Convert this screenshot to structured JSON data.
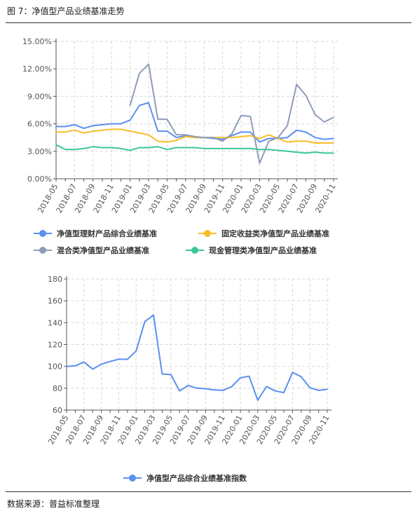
{
  "figure": {
    "title": "图 7：净值型产品业绩基准走势",
    "source": "数据来源：普益标准整理"
  },
  "colors": {
    "blue": "#5b8ff0",
    "yellow": "#f7bd2a",
    "gray": "#8e9cba",
    "green": "#3cc796",
    "grid": "#d9d9d9",
    "axis": "#555555"
  },
  "chart_data": [
    {
      "type": "line",
      "title": "",
      "xlabel": "",
      "ylabel": "",
      "ylim": [
        0,
        15
      ],
      "y_unit": "%",
      "y_ticks": [
        "0.00%",
        "3.00%",
        "6.00%",
        "9.00%",
        "12.00%",
        "15.00%"
      ],
      "grid": true,
      "legend_position": "bottom",
      "x": [
        "2018-05",
        "2018-06",
        "2018-07",
        "2018-08",
        "2018-09",
        "2018-10",
        "2018-11",
        "2018-12",
        "2019-01",
        "2019-02",
        "2019-03",
        "2019-04",
        "2019-05",
        "2019-06",
        "2019-07",
        "2019-08",
        "2019-09",
        "2019-10",
        "2019-11",
        "2019-12",
        "2020-01",
        "2020-02",
        "2020-03",
        "2020-04",
        "2020-05",
        "2020-06",
        "2020-07",
        "2020-08",
        "2020-09",
        "2020-10",
        "2020-11"
      ],
      "x_tick_labels": [
        "2018-05",
        "2018-07",
        "2018-09",
        "2018-11",
        "2019-01",
        "2019-03",
        "2019-05",
        "2019-07",
        "2019-09",
        "2019-11",
        "2020-01",
        "2020-03",
        "2020-05",
        "2020-07",
        "2020-09",
        "2020-11"
      ],
      "series": [
        {
          "name": "净值型理财产品综合业绩基准",
          "color": "#5b8ff0",
          "values": [
            5.7,
            5.7,
            5.9,
            5.5,
            5.8,
            5.9,
            6.0,
            6.0,
            6.4,
            8.0,
            8.3,
            5.2,
            5.2,
            4.5,
            4.7,
            4.5,
            4.5,
            4.4,
            4.3,
            4.7,
            5.1,
            5.1,
            4.0,
            4.4,
            4.4,
            4.5,
            5.3,
            5.1,
            4.5,
            4.3,
            4.4
          ]
        },
        {
          "name": "固定收益类净值型产品业绩基准",
          "color": "#f7bd2a",
          "values": [
            5.1,
            5.1,
            5.3,
            5.0,
            5.2,
            5.3,
            5.4,
            5.4,
            5.2,
            5.0,
            4.8,
            4.1,
            4.0,
            4.2,
            4.6,
            4.5,
            4.5,
            4.5,
            4.5,
            4.5,
            4.6,
            4.7,
            4.4,
            4.8,
            4.4,
            4.0,
            4.1,
            4.1,
            3.9,
            3.9,
            3.9
          ]
        },
        {
          "name": "混合类净值型产品业绩基准",
          "color": "#8e9cba",
          "values": [
            null,
            null,
            null,
            null,
            null,
            null,
            null,
            null,
            8.0,
            11.5,
            12.5,
            6.5,
            6.5,
            4.8,
            4.8,
            4.6,
            4.5,
            4.5,
            4.1,
            4.9,
            6.9,
            6.8,
            1.7,
            4.1,
            4.5,
            5.8,
            10.3,
            9.1,
            7.0,
            6.2,
            6.7
          ]
        },
        {
          "name": "现金管理类净值型产品业绩基准",
          "color": "#3cc796",
          "values": [
            3.7,
            3.2,
            3.2,
            3.3,
            3.5,
            3.4,
            3.4,
            3.3,
            3.1,
            3.4,
            3.4,
            3.5,
            3.2,
            3.4,
            3.4,
            3.4,
            3.3,
            3.3,
            3.3,
            3.3,
            3.3,
            3.3,
            3.2,
            3.2,
            3.1,
            3.0,
            2.9,
            2.8,
            2.9,
            2.8,
            2.8
          ]
        }
      ]
    },
    {
      "type": "line",
      "title": "",
      "xlabel": "",
      "ylabel": "",
      "ylim": [
        60,
        180
      ],
      "y_ticks": [
        "60",
        "80",
        "100",
        "120",
        "140",
        "160",
        "180"
      ],
      "grid": true,
      "legend_position": "bottom",
      "x": [
        "2018-05",
        "2018-06",
        "2018-07",
        "2018-08",
        "2018-09",
        "2018-10",
        "2018-11",
        "2018-12",
        "2019-01",
        "2019-02",
        "2019-03",
        "2019-04",
        "2019-05",
        "2019-06",
        "2019-07",
        "2019-08",
        "2019-09",
        "2019-10",
        "2019-11",
        "2019-12",
        "2020-01",
        "2020-02",
        "2020-03",
        "2020-04",
        "2020-05",
        "2020-06",
        "2020-07",
        "2020-08",
        "2020-09",
        "2020-10",
        "2020-11"
      ],
      "x_tick_labels": [
        "2018-05",
        "2018-07",
        "2018-09",
        "2018-11",
        "2019-01",
        "2019-03",
        "2019-05",
        "2019-07",
        "2019-09",
        "2019-11",
        "2020-01",
        "2020-03",
        "2020-05",
        "2020-07",
        "2020-09",
        "2020-11"
      ],
      "series": [
        {
          "name": "净值型产品综合业绩基准指数",
          "color": "#5b8ff0",
          "values": [
            100,
            100.5,
            104,
            97.5,
            102,
            104.5,
            106.5,
            106.5,
            114,
            141,
            147,
            93,
            92.5,
            77.5,
            82.5,
            80,
            79.5,
            78.5,
            78,
            81.5,
            89.5,
            91,
            69,
            81.5,
            77.5,
            76,
            94.5,
            90.5,
            80.5,
            78,
            79
          ]
        }
      ]
    }
  ]
}
